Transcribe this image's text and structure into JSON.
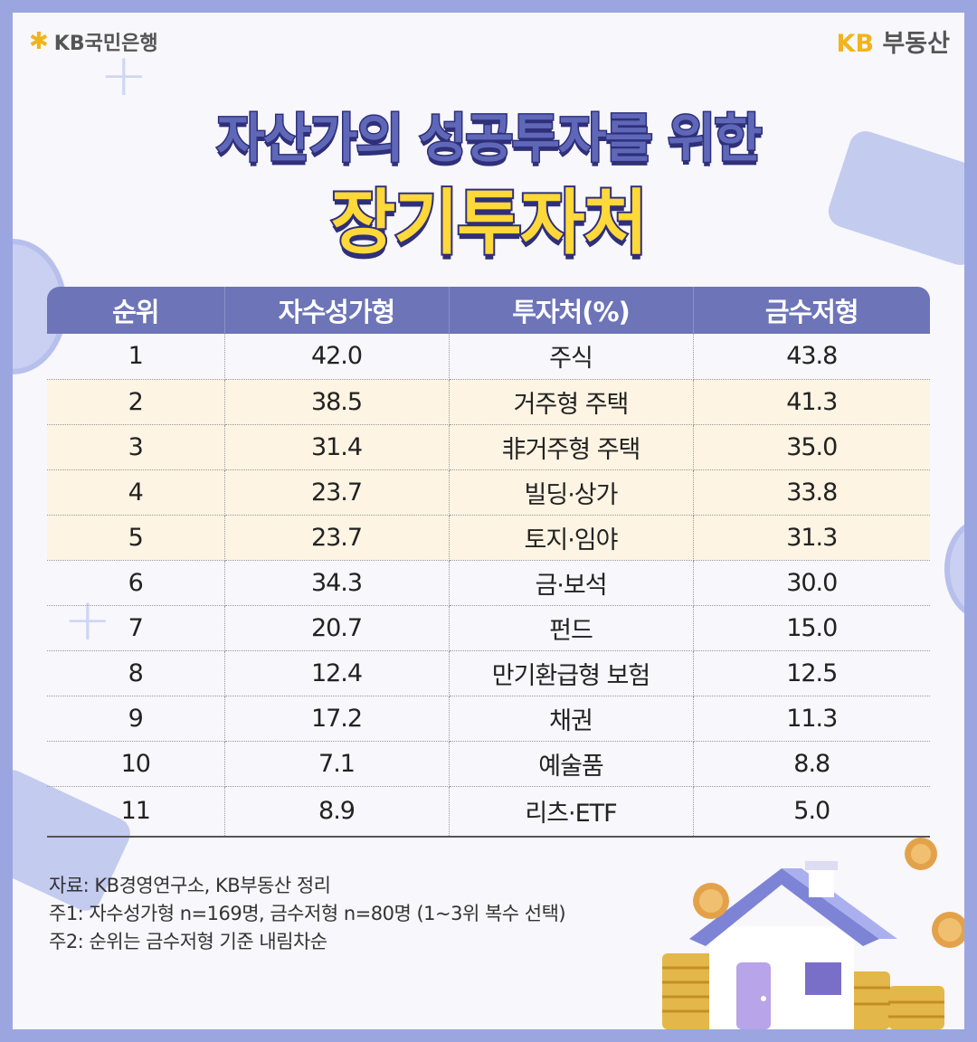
{
  "header": {
    "left_logo_icon": "kb-star-icon",
    "left_logo_text": "KB국민은행",
    "right_logo_kb": "KB",
    "right_logo_text": "부동산"
  },
  "title": {
    "line1": "자산가의 성공투자를 위한",
    "line2": "장기투자처"
  },
  "table": {
    "headers": [
      "순위",
      "자수성가형",
      "투자처(%)",
      "금수저형"
    ],
    "rows": [
      {
        "rank": "1",
        "self_made": "42.0",
        "item": "주식",
        "inherited": "43.8",
        "highlight": false
      },
      {
        "rank": "2",
        "self_made": "38.5",
        "item": "거주형 주택",
        "inherited": "41.3",
        "highlight": true
      },
      {
        "rank": "3",
        "self_made": "31.4",
        "item": "非거주형 주택",
        "inherited": "35.0",
        "highlight": true
      },
      {
        "rank": "4",
        "self_made": "23.7",
        "item": "빌딩·상가",
        "inherited": "33.8",
        "highlight": true
      },
      {
        "rank": "5",
        "self_made": "23.7",
        "item": "토지·임야",
        "inherited": "31.3",
        "highlight": true
      },
      {
        "rank": "6",
        "self_made": "34.3",
        "item": "금·보석",
        "inherited": "30.0",
        "highlight": false
      },
      {
        "rank": "7",
        "self_made": "20.7",
        "item": "펀드",
        "inherited": "15.0",
        "highlight": false
      },
      {
        "rank": "8",
        "self_made": "12.4",
        "item": "만기환급형 보험",
        "inherited": "12.5",
        "highlight": false
      },
      {
        "rank": "9",
        "self_made": "17.2",
        "item": "채권",
        "inherited": "11.3",
        "highlight": false
      },
      {
        "rank": "10",
        "self_made": "7.1",
        "item": "예술품",
        "inherited": "8.8",
        "highlight": false
      },
      {
        "rank": "11",
        "self_made": "8.9",
        "item": "리츠·ETF",
        "inherited": "5.0",
        "highlight": false
      }
    ]
  },
  "notes": {
    "source": "자료: KB경영연구소, KB부동산 정리",
    "note1": "주1: 자수성가형 n=169명, 금수저형 n=80명 (1~3위 복수 선택)",
    "note2": "주2: 순위는 금수저형 기준 내림차순"
  },
  "colors": {
    "frame": "#9ba6e0",
    "header_bg": "#6d74b8",
    "highlight_row": "#fdf4e3",
    "title_yellow": "#ffd83a",
    "kb_yellow": "#f2b41c"
  }
}
